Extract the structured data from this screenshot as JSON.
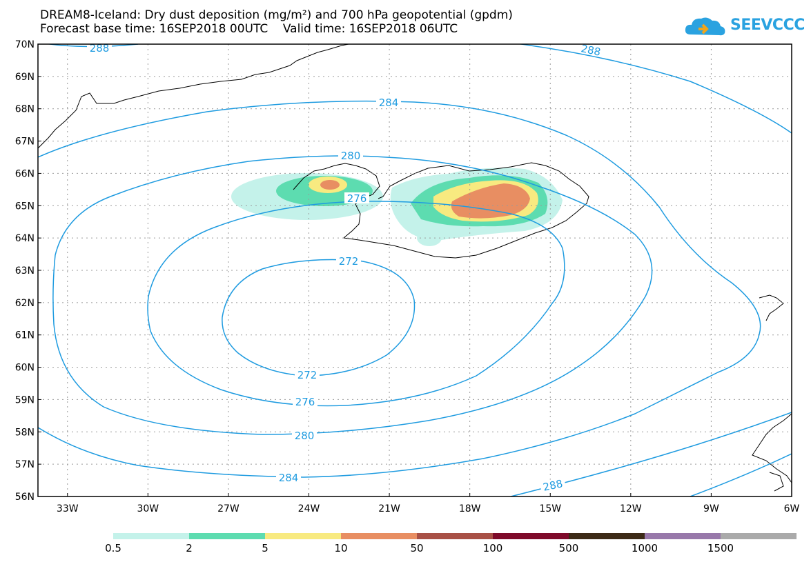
{
  "title_line1": "DREAM8-Iceland: Dry dust deposition (mg/m²) and 700 hPa geopotential (gpdm)",
  "title_line2": "Forecast base time: 16SEP2018 00UTC    Valid time: 16SEP2018 06UTC",
  "logo_text": "SEEVCCC",
  "logo_icon": "cloud-icon",
  "lat_labels": [
    "70N",
    "69N",
    "68N",
    "67N",
    "66N",
    "65N",
    "64N",
    "63N",
    "62N",
    "61N",
    "60N",
    "59N",
    "58N",
    "57N",
    "56N"
  ],
  "lon_labels": [
    "33W",
    "30W",
    "27W",
    "24W",
    "21W",
    "18W",
    "15W",
    "12W",
    "9W",
    "6W"
  ],
  "contour_labels": [
    "288",
    "288",
    "284",
    "280",
    "276",
    "272",
    "272",
    "276",
    "280",
    "284",
    "288"
  ],
  "legend": {
    "colors": [
      "#c4f2ea",
      "#5ddcb0",
      "#f8ea80",
      "#e88e62",
      "#a85046",
      "#7e0a2a",
      "#3c2a16",
      "#9878aa",
      "#aaaaaa"
    ],
    "labels": [
      "0.5",
      "2",
      "5",
      "10",
      "50",
      "100",
      "500",
      "1000",
      "1500"
    ]
  },
  "contour_color": "#1e9be0"
}
